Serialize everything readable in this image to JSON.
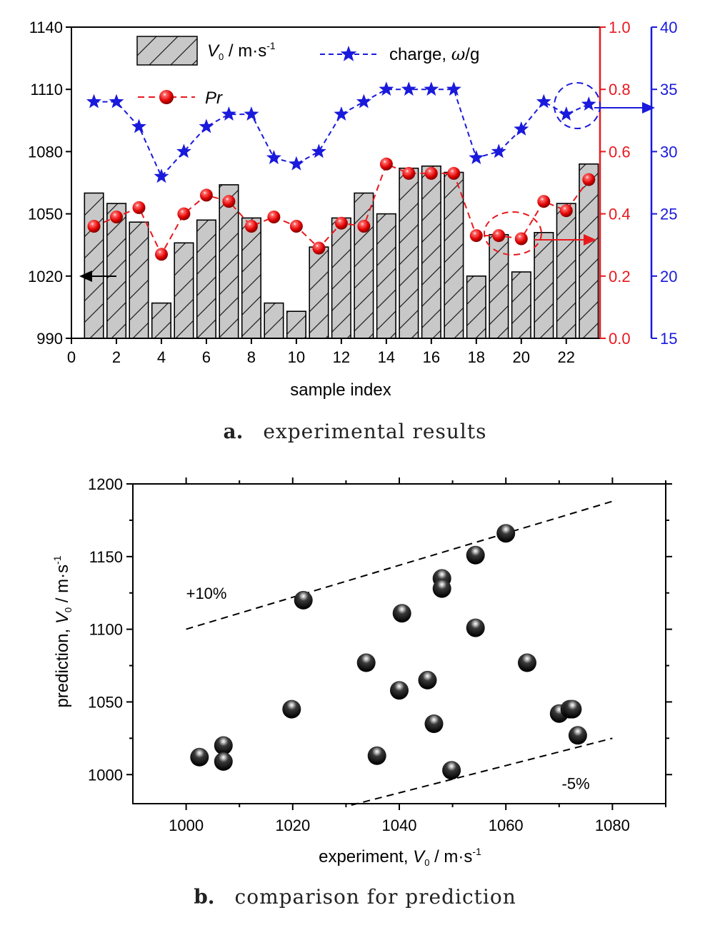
{
  "chart_data": [
    {
      "type": "bar",
      "xlabel": "sample index",
      "xlim": [
        0,
        23.5
      ],
      "xticks": [
        0,
        2,
        4,
        6,
        8,
        10,
        12,
        14,
        16,
        18,
        20,
        22
      ],
      "axes": {
        "left": {
          "ylim": [
            990,
            1140
          ],
          "ticks": [
            990,
            1020,
            1050,
            1080,
            1110,
            1140
          ],
          "color": "#000000"
        },
        "right_red": {
          "ylim": [
            0.0,
            1.0
          ],
          "ticks": [
            "0.0",
            "0.2",
            "0.4",
            "0.6",
            "0.8",
            "1.0"
          ],
          "color": "#e8191e"
        },
        "right_blue": {
          "ylim": [
            15,
            40
          ],
          "ticks": [
            15,
            20,
            25,
            30,
            35,
            40
          ],
          "color": "#1a1adc"
        }
      },
      "legend": {
        "v0_main": "V",
        "v0_sub": "0",
        "v0_unit": " / m·s",
        "v0_sup": "-1",
        "charge": "charge, ",
        "omega": "ω",
        "charge_unit": "/g",
        "pr": "Pr"
      },
      "series": [
        {
          "key": "v0",
          "axis": "left",
          "style": "hatched-bar",
          "x": [
            1,
            2,
            3,
            4,
            5,
            6,
            7,
            8,
            9,
            10,
            11,
            12,
            13,
            14,
            15,
            16,
            17,
            18,
            19,
            20,
            21,
            22,
            23
          ],
          "values": [
            1060,
            1055,
            1046,
            1007,
            1036,
            1047,
            1064,
            1048,
            1007,
            1003,
            1034,
            1048,
            1060,
            1050,
            1072,
            1073,
            1070,
            1020,
            1040,
            1022,
            1041,
            1055,
            1074
          ]
        },
        {
          "key": "pr",
          "axis": "right_red",
          "style": "red-dashed-spheres",
          "x": [
            1,
            2,
            3,
            4,
            5,
            6,
            7,
            8,
            9,
            10,
            11,
            12,
            13,
            14,
            15,
            16,
            17,
            18,
            19,
            20,
            21,
            22,
            23
          ],
          "values": [
            0.36,
            0.39,
            0.42,
            0.27,
            0.4,
            0.46,
            0.44,
            0.36,
            0.39,
            0.36,
            0.29,
            0.37,
            0.36,
            0.56,
            0.53,
            0.53,
            0.53,
            0.33,
            0.33,
            0.32,
            0.44,
            0.41,
            0.51
          ]
        },
        {
          "key": "charge",
          "axis": "right_blue",
          "style": "blue-dashed-stars",
          "x": [
            1,
            2,
            3,
            4,
            5,
            6,
            7,
            8,
            9,
            10,
            11,
            12,
            13,
            14,
            15,
            16,
            17,
            18,
            19,
            20,
            21,
            22,
            23
          ],
          "values": [
            34,
            34,
            32,
            28,
            30,
            32,
            33,
            33,
            29.5,
            29,
            30,
            33,
            34,
            35,
            35,
            35,
            35,
            29.5,
            30,
            31.8,
            34,
            33,
            33.8
          ]
        }
      ],
      "caption": {
        "letter": "a.",
        "text": "experimental results"
      }
    },
    {
      "type": "scatter",
      "xlabel_main": "experiment, ",
      "xlabel_var": "V",
      "xlabel_sub": "0",
      "xlabel_unit": " / m·s",
      "xlabel_sup": "-1",
      "ylabel_main": "prediction, ",
      "ylabel_var": "V",
      "ylabel_sub": "0",
      "ylabel_unit": " / m·s",
      "ylabel_sup": "-1",
      "xlim": [
        990,
        1090
      ],
      "ylim": [
        980,
        1200
      ],
      "xticks": [
        1000,
        1020,
        1040,
        1060,
        1080
      ],
      "yticks": [
        1000,
        1050,
        1100,
        1150,
        1200
      ],
      "points": [
        {
          "x": 1002.5,
          "y": 1012
        },
        {
          "x": 1007,
          "y": 1020
        },
        {
          "x": 1007,
          "y": 1009
        },
        {
          "x": 1019.8,
          "y": 1045
        },
        {
          "x": 1022,
          "y": 1120
        },
        {
          "x": 1033.8,
          "y": 1077
        },
        {
          "x": 1035.8,
          "y": 1013
        },
        {
          "x": 1040,
          "y": 1058
        },
        {
          "x": 1040.5,
          "y": 1111
        },
        {
          "x": 1045.3,
          "y": 1065
        },
        {
          "x": 1046.5,
          "y": 1035
        },
        {
          "x": 1048,
          "y": 1135
        },
        {
          "x": 1048,
          "y": 1128
        },
        {
          "x": 1049.8,
          "y": 1003
        },
        {
          "x": 1054.3,
          "y": 1151
        },
        {
          "x": 1054.3,
          "y": 1101
        },
        {
          "x": 1060,
          "y": 1166
        },
        {
          "x": 1064,
          "y": 1077
        },
        {
          "x": 1070,
          "y": 1042
        },
        {
          "x": 1072,
          "y": 1045
        },
        {
          "x": 1072.5,
          "y": 1045
        },
        {
          "x": 1073.5,
          "y": 1027
        }
      ],
      "reference_lines": [
        {
          "label": "+10%",
          "from": [
            1000,
            1100
          ],
          "to": [
            1080,
            1188
          ]
        },
        {
          "label": "-5%",
          "from": [
            1031,
            979
          ],
          "to": [
            1080,
            1025
          ]
        }
      ],
      "caption": {
        "letter": "b.",
        "text": "comparison for prediction"
      }
    }
  ]
}
